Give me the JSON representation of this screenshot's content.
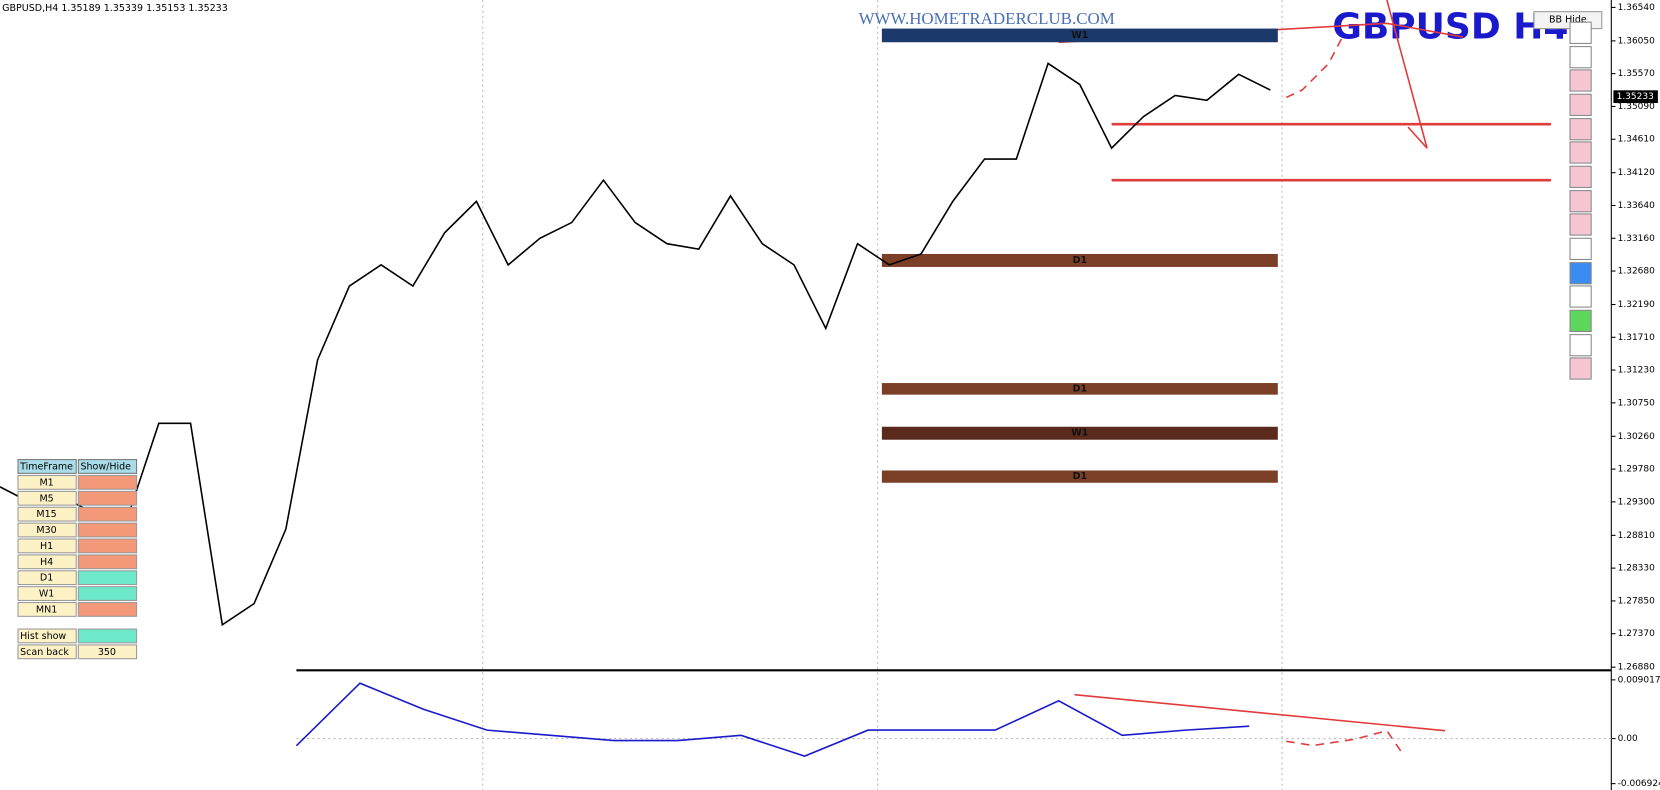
{
  "header": {
    "symbol_info": "GBPUSD,H4  1.35189 1.35339 1.35153 1.35233",
    "watermark": "WWW.HOMETRADERCLUB.COM",
    "big_title": "GBPUSD  H4",
    "button": "BB Hide"
  },
  "chart_data": [
    {
      "type": "line",
      "color": "#000000",
      "values": [
        1.2952,
        1.2928,
        1.2936,
        1.2913,
        1.2905,
        1.3045,
        1.3045,
        1.275,
        1.2781,
        1.289,
        1.3138,
        1.3246,
        1.3277,
        1.3246,
        1.3324,
        1.337,
        1.3277,
        1.3316,
        1.3339,
        1.3401,
        1.3339,
        1.3308,
        1.33,
        1.3378,
        1.3308,
        1.3277,
        1.3184,
        1.3308,
        1.3277,
        1.3293,
        1.337,
        1.3432,
        1.3432,
        1.3572,
        1.3541,
        1.3448,
        1.3494,
        1.3525,
        1.3518,
        1.3556,
        1.3533
      ],
      "ylim": [
        1.2688,
        1.3654
      ],
      "yticks": [
        {
          "value": 1.3654,
          "label": "1.36540"
        },
        {
          "value": 1.3605,
          "label": "1.36050"
        },
        {
          "value": 1.3557,
          "label": "1.35570"
        },
        {
          "value": 1.3509,
          "label": "1.35090"
        },
        {
          "value": 1.3461,
          "label": "1.34610"
        },
        {
          "value": 1.3412,
          "label": "1.34120"
        },
        {
          "value": 1.3364,
          "label": "1.33640"
        },
        {
          "value": 1.3316,
          "label": "1.33160"
        },
        {
          "value": 1.3268,
          "label": "1.32680"
        },
        {
          "value": 1.3219,
          "label": "1.32190"
        },
        {
          "value": 1.3171,
          "label": "1.31710"
        },
        {
          "value": 1.3123,
          "label": "1.31230"
        },
        {
          "value": 1.3075,
          "label": "1.30750"
        },
        {
          "value": 1.3026,
          "label": "1.30260"
        },
        {
          "value": 1.2978,
          "label": "1.29780"
        },
        {
          "value": 1.293,
          "label": "1.29300"
        },
        {
          "value": 1.2881,
          "label": "1.28810"
        },
        {
          "value": 1.2833,
          "label": "1.28330"
        },
        {
          "value": 1.2785,
          "label": "1.27850"
        },
        {
          "value": 1.2737,
          "label": "1.27370"
        },
        {
          "value": 1.2688,
          "label": "1.26880"
        }
      ],
      "current_price": 1.35233,
      "zones": [
        {
          "label": "W1",
          "top": 1.3623,
          "bottom": 1.3603,
          "color": "#1b3a6b"
        },
        {
          "label": "D1",
          "top": 1.3293,
          "bottom": 1.3274,
          "color": "#7b3f28"
        },
        {
          "label": "D1",
          "top": 1.3104,
          "bottom": 1.3087,
          "color": "#7b3f28"
        },
        {
          "label": "W1",
          "top": 1.304,
          "bottom": 1.3021,
          "color": "#5a2b1c"
        },
        {
          "label": "D1",
          "top": 1.2976,
          "bottom": 1.2958,
          "color": "#7b3f28"
        }
      ],
      "levels": [
        1.3483,
        1.3401
      ]
    },
    {
      "type": "line",
      "color": "#1a1acc",
      "values": [
        -0.0011,
        0.0085,
        0.0045,
        0.0013,
        0.0005,
        -0.0003,
        -0.0003,
        0.0005,
        -0.0027,
        0.0013,
        0.0013,
        0.0013,
        0.0058,
        0.0005,
        0.0013,
        0.0019
      ],
      "ylim": [
        -0.006924,
        0.009017
      ],
      "yticks": [
        0.009017,
        {
          "value": 0,
          "label": "0.00"
        },
        -0.006924
      ]
    }
  ],
  "panel": {
    "headers": [
      "TimeFrame",
      "Show/Hide"
    ],
    "rows": [
      {
        "tf": "M1",
        "color": "#f4987a"
      },
      {
        "tf": "M5",
        "color": "#f4987a"
      },
      {
        "tf": "M15",
        "color": "#f4987a"
      },
      {
        "tf": "M30",
        "color": "#f4987a"
      },
      {
        "tf": "H1",
        "color": "#f4987a"
      },
      {
        "tf": "H4",
        "color": "#f4987a"
      },
      {
        "tf": "D1",
        "color": "#6de8c8"
      },
      {
        "tf": "W1",
        "color": "#6de8c8"
      },
      {
        "tf": "MN1",
        "color": "#f4987a"
      }
    ],
    "hist_show": "Hist show",
    "scan_back": "Scan back",
    "scan_back_value": "350"
  }
}
